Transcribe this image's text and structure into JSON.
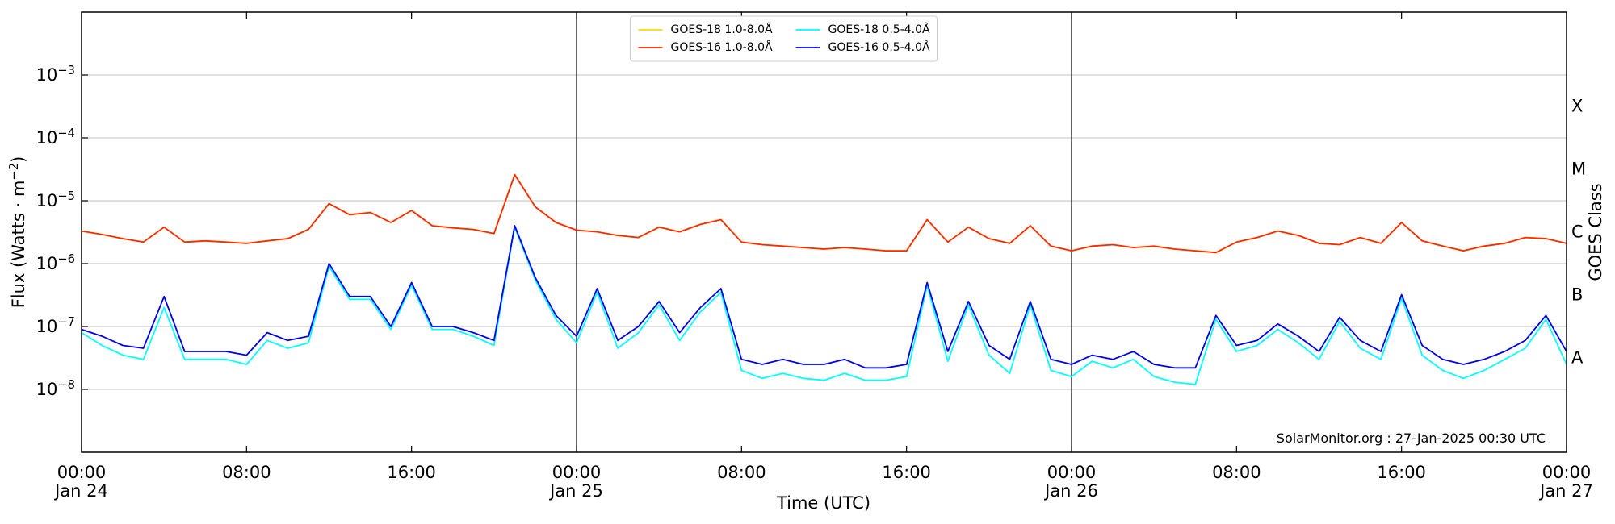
{
  "chart_data": {
    "type": "line",
    "xlabel": "Time (UTC)",
    "ylabel": "Flux (Watts · m−2)",
    "y2label": "GOES Class",
    "annotation": "SolarMonitor.org : 27-Jan-2025 00:30 UTC",
    "log_y": true,
    "grid": true,
    "legend_loc": "upper center",
    "xlim": [
      0,
      72
    ],
    "xticks": [
      {
        "value": 0,
        "label": "00:00",
        "sublabel": "Jan 24"
      },
      {
        "value": 8,
        "label": "08:00"
      },
      {
        "value": 16,
        "label": "16:00"
      },
      {
        "value": 24,
        "label": "00:00",
        "sublabel": "Jan 25"
      },
      {
        "value": 32,
        "label": "08:00"
      },
      {
        "value": 40,
        "label": "16:00"
      },
      {
        "value": 48,
        "label": "00:00",
        "sublabel": "Jan 26"
      },
      {
        "value": 56,
        "label": "08:00"
      },
      {
        "value": 64,
        "label": "16:00"
      },
      {
        "value": 72,
        "label": "00:00",
        "sublabel": "Jan 27"
      }
    ],
    "vlines": [
      24,
      48
    ],
    "ylim": [
      1e-09,
      0.01
    ],
    "yticks": [
      {
        "value": 1e-08,
        "label": "10−8"
      },
      {
        "value": 1e-07,
        "label": "10−7"
      },
      {
        "value": 1e-06,
        "label": "10−6"
      },
      {
        "value": 1e-05,
        "label": "10−5"
      },
      {
        "value": 0.0001,
        "label": "10−4"
      },
      {
        "value": 0.001,
        "label": "10−3"
      }
    ],
    "y2lim": [
      1e-09,
      0.01
    ],
    "y2ticks": [
      {
        "value": 3.2e-08,
        "label": "A"
      },
      {
        "value": 3.2e-07,
        "label": "B"
      },
      {
        "value": 3.2e-06,
        "label": "C"
      },
      {
        "value": 3.2e-05,
        "label": "M"
      },
      {
        "value": 0.00032,
        "label": "X"
      }
    ],
    "x": [
      0,
      1,
      2,
      3,
      4,
      5,
      6,
      7,
      8,
      9,
      10,
      11,
      12,
      13,
      14,
      15,
      16,
      17,
      18,
      19,
      20,
      21,
      22,
      23,
      24,
      25,
      26,
      27,
      28,
      29,
      30,
      31,
      32,
      33,
      34,
      35,
      36,
      37,
      38,
      39,
      40,
      41,
      42,
      43,
      44,
      45,
      46,
      47,
      48,
      49,
      50,
      51,
      52,
      53,
      54,
      55,
      56,
      57,
      58,
      59,
      60,
      61,
      62,
      63,
      64,
      65,
      66,
      67,
      68,
      69,
      70,
      71,
      72
    ],
    "series": [
      {
        "name": "GOES-18 1.0-8.0Å",
        "color": "#ffd700",
        "values": [
          3.3e-06,
          2.9e-06,
          2.5e-06,
          2.2e-06,
          3.8e-06,
          2.2e-06,
          2.3e-06,
          2.2e-06,
          2.1e-06,
          2.3e-06,
          2.5e-06,
          3.5e-06,
          9e-06,
          6e-06,
          6.5e-06,
          4.5e-06,
          7e-06,
          4e-06,
          3.7e-06,
          3.5e-06,
          3e-06,
          2.6e-05,
          8e-06,
          4.5e-06,
          3.4e-06,
          3.2e-06,
          2.8e-06,
          2.6e-06,
          3.8e-06,
          3.2e-06,
          4.2e-06,
          5e-06,
          2.2e-06,
          2e-06,
          1.9e-06,
          1.8e-06,
          1.7e-06,
          1.8e-06,
          1.7e-06,
          1.6e-06,
          1.6e-06,
          5e-06,
          2.2e-06,
          3.8e-06,
          2.5e-06,
          2.1e-06,
          4e-06,
          1.9e-06,
          1.6e-06,
          1.9e-06,
          2e-06,
          1.8e-06,
          1.9e-06,
          1.7e-06,
          1.6e-06,
          1.5e-06,
          2.2e-06,
          2.6e-06,
          3.3e-06,
          2.8e-06,
          2.1e-06,
          2e-06,
          2.6e-06,
          2.1e-06,
          4.5e-06,
          2.3e-06,
          1.9e-06,
          1.6e-06,
          1.9e-06,
          2.1e-06,
          2.6e-06,
          2.5e-06,
          2.1e-06
        ]
      },
      {
        "name": "GOES-16 1.0-8.0Å",
        "color": "#ff2a00",
        "values": [
          3.3e-06,
          2.9e-06,
          2.5e-06,
          2.2e-06,
          3.8e-06,
          2.2e-06,
          2.3e-06,
          2.2e-06,
          2.1e-06,
          2.3e-06,
          2.5e-06,
          3.5e-06,
          9e-06,
          6e-06,
          6.5e-06,
          4.5e-06,
          7e-06,
          4e-06,
          3.7e-06,
          3.5e-06,
          3e-06,
          2.6e-05,
          8e-06,
          4.5e-06,
          3.4e-06,
          3.2e-06,
          2.8e-06,
          2.6e-06,
          3.8e-06,
          3.2e-06,
          4.2e-06,
          5e-06,
          2.2e-06,
          2e-06,
          1.9e-06,
          1.8e-06,
          1.7e-06,
          1.8e-06,
          1.7e-06,
          1.6e-06,
          1.6e-06,
          5e-06,
          2.2e-06,
          3.8e-06,
          2.5e-06,
          2.1e-06,
          4e-06,
          1.9e-06,
          1.6e-06,
          1.9e-06,
          2e-06,
          1.8e-06,
          1.9e-06,
          1.7e-06,
          1.6e-06,
          1.5e-06,
          2.2e-06,
          2.6e-06,
          3.3e-06,
          2.8e-06,
          2.1e-06,
          2e-06,
          2.6e-06,
          2.1e-06,
          4.5e-06,
          2.3e-06,
          1.9e-06,
          1.6e-06,
          1.9e-06,
          2.1e-06,
          2.6e-06,
          2.5e-06,
          2.1e-06
        ]
      },
      {
        "name": "GOES-18 0.5-4.0Å",
        "color": "#00ffff",
        "values": [
          8e-08,
          5e-08,
          3.5e-08,
          3e-08,
          2e-07,
          3e-08,
          3e-08,
          3e-08,
          2.5e-08,
          6e-08,
          4.5e-08,
          5.5e-08,
          9e-07,
          2.7e-07,
          2.7e-07,
          9e-08,
          4.5e-07,
          9e-08,
          9e-08,
          7e-08,
          5e-08,
          3.8e-06,
          5.5e-07,
          1.3e-07,
          5.5e-08,
          3.5e-07,
          4.5e-08,
          8e-08,
          2.2e-07,
          6e-08,
          1.7e-07,
          3.5e-07,
          2e-08,
          1.5e-08,
          1.8e-08,
          1.5e-08,
          1.4e-08,
          1.8e-08,
          1.4e-08,
          1.4e-08,
          1.6e-08,
          4.5e-07,
          2.8e-08,
          2.2e-07,
          3.5e-08,
          1.8e-08,
          2.2e-07,
          2e-08,
          1.6e-08,
          2.8e-08,
          2.2e-08,
          3e-08,
          1.6e-08,
          1.3e-08,
          1.2e-08,
          1.3e-07,
          4e-08,
          5e-08,
          9e-08,
          5.5e-08,
          3e-08,
          1.2e-07,
          4.5e-08,
          3e-08,
          2.8e-07,
          3.5e-08,
          2e-08,
          1.5e-08,
          2e-08,
          3e-08,
          4.5e-08,
          1.3e-07,
          2.5e-08
        ]
      },
      {
        "name": "GOES-16 0.5-4.0Å",
        "color": "#0000ee",
        "values": [
          9e-08,
          7e-08,
          5e-08,
          4.5e-08,
          3e-07,
          4e-08,
          4e-08,
          4e-08,
          3.5e-08,
          8e-08,
          6e-08,
          7e-08,
          1e-06,
          3e-07,
          3e-07,
          1e-07,
          5e-07,
          1e-07,
          1e-07,
          8e-08,
          6e-08,
          4e-06,
          6e-07,
          1.5e-07,
          7e-08,
          4e-07,
          6e-08,
          1e-07,
          2.5e-07,
          8e-08,
          2e-07,
          4e-07,
          3e-08,
          2.5e-08,
          3e-08,
          2.5e-08,
          2.5e-08,
          3e-08,
          2.2e-08,
          2.2e-08,
          2.5e-08,
          5e-07,
          4e-08,
          2.5e-07,
          5e-08,
          3e-08,
          2.5e-07,
          3e-08,
          2.5e-08,
          3.5e-08,
          3e-08,
          4e-08,
          2.5e-08,
          2.2e-08,
          2.2e-08,
          1.5e-07,
          5e-08,
          6e-08,
          1.1e-07,
          7e-08,
          4e-08,
          1.4e-07,
          6e-08,
          4e-08,
          3.2e-07,
          5e-08,
          3e-08,
          2.5e-08,
          3e-08,
          4e-08,
          6e-08,
          1.5e-07,
          4e-08
        ]
      }
    ]
  }
}
